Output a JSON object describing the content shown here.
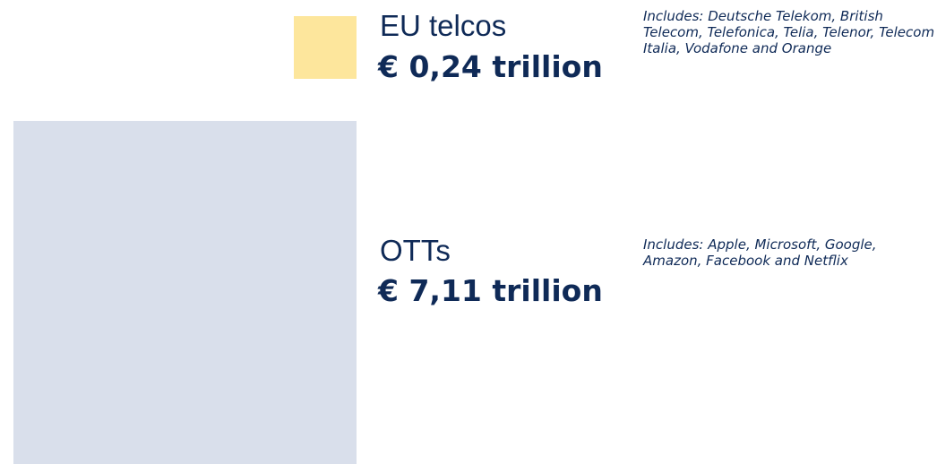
{
  "chart_data": {
    "type": "square-area",
    "categories": [
      "EU telcos",
      "OTTs"
    ],
    "values": [
      0.24,
      7.11
    ],
    "value_labels": [
      "€ 0,24 trillion",
      "€ 7,11 trillion"
    ],
    "notes": [
      "Includes: Deutsche Telekom, British Telecom, Telefonica, Telia, Telenor, Telecom Italia, Vodafone and Orange",
      "Includes: Apple, Microsoft, Google, Amazon, Facebook and Netflix"
    ],
    "colors": [
      "#fde69c",
      "#d9dfeb"
    ]
  }
}
